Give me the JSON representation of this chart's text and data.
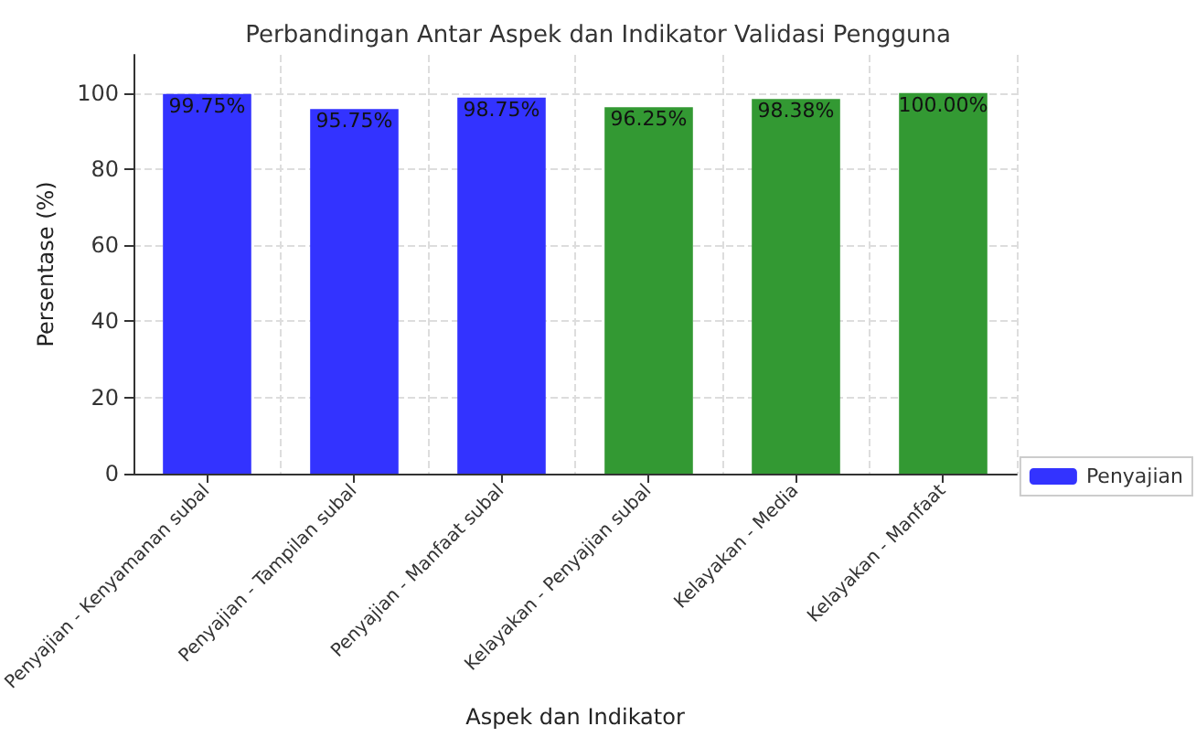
{
  "chart_data": {
    "type": "bar",
    "title": "Perbandingan Antar Aspek dan Indikator Validasi Pengguna",
    "xlabel": "Aspek dan Indikator",
    "ylabel": "Persentase (%)",
    "categories": [
      "Penyajian - Kenyamanan subal",
      "Penyajian - Tampilan subal",
      "Penyajian - Manfaat subal",
      "Kelayakan - Penyajian subal",
      "Kelayakan - Media",
      "Kelayakan - Manfaat"
    ],
    "series": [
      {
        "name": "Penyajian",
        "color": "#3333ff",
        "values": [
          99.75,
          95.75,
          98.75,
          null,
          null,
          null
        ],
        "value_labels": [
          "99.75%",
          "95.75%",
          "98.75%",
          null,
          null,
          null
        ]
      },
      {
        "color": "#339933",
        "values": [
          null,
          null,
          null,
          96.25,
          98.38,
          100
        ],
        "value_labels": [
          null,
          null,
          null,
          "96.25%",
          "98.38%",
          "100.00%"
        ]
      }
    ],
    "ylim": [
      0,
      110
    ],
    "yticks": [
      0,
      20,
      40,
      60,
      80,
      100
    ],
    "grid": true,
    "legend": "right"
  }
}
